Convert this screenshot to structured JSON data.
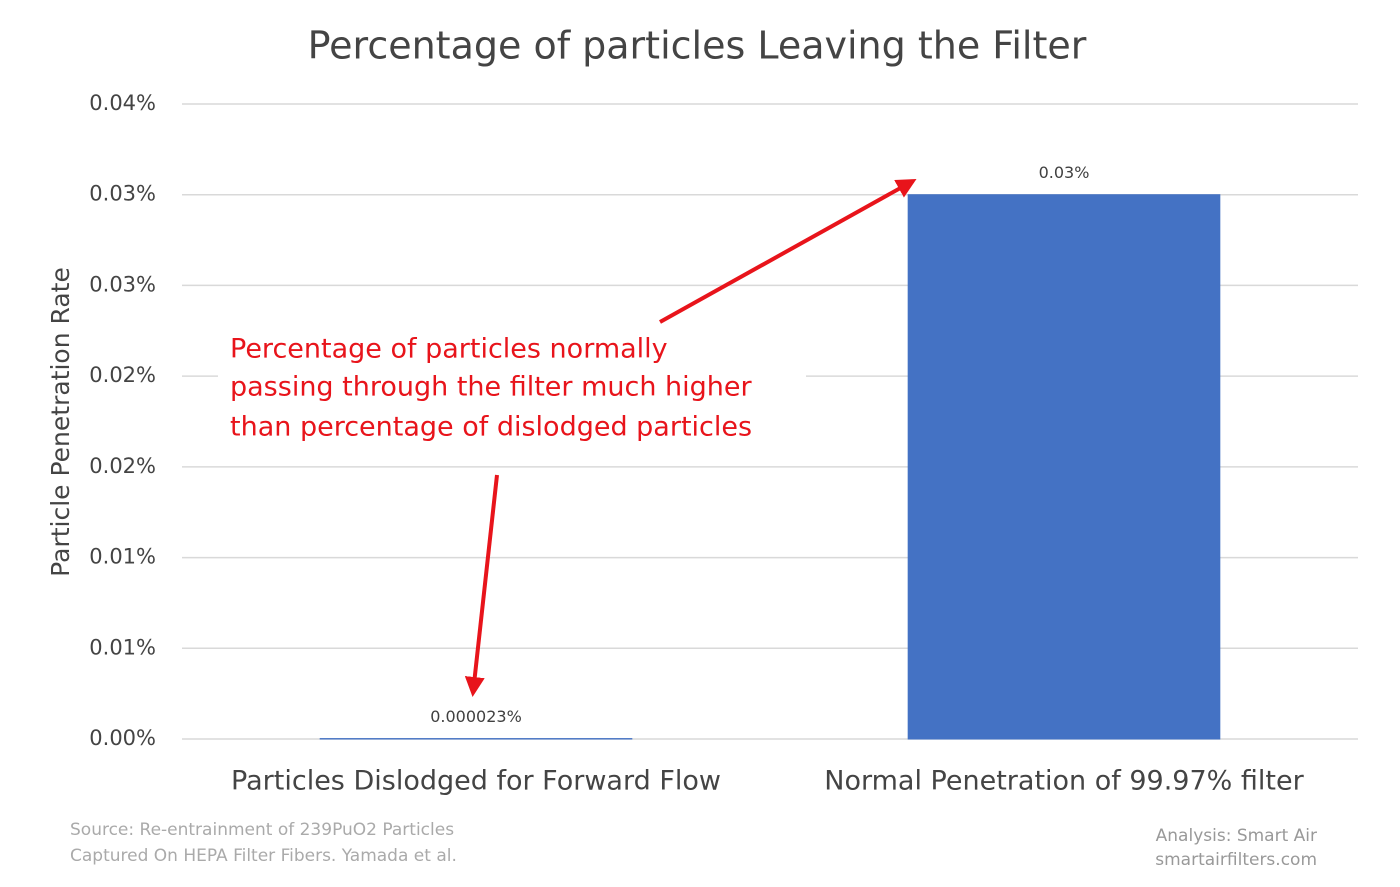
{
  "chart_data": {
    "type": "bar",
    "title": "Percentage of particles Leaving the Filter",
    "y_label": "Particle Penetration Rate",
    "categories": [
      "Particles Dislodged for Forward Flow",
      "Normal Penetration of 99.97% filter"
    ],
    "values": [
      2.3e-05,
      0.03
    ],
    "value_labels": [
      "0.000023%",
      "0.03%"
    ],
    "color": "#4472c4",
    "ylim": [
      0,
      0.035
    ],
    "yticks": [
      {
        "value": 0,
        "label": "0.00%"
      },
      {
        "value": 0.005,
        "label": "0.01%"
      },
      {
        "value": 0.01,
        "label": "0.01%"
      },
      {
        "value": 0.015,
        "label": "0.02%"
      },
      {
        "value": 0.02,
        "label": "0.02%"
      },
      {
        "value": 0.025,
        "label": "0.03%"
      },
      {
        "value": 0.03,
        "label": "0.03%"
      },
      {
        "value": 0.035,
        "label": "0.04%"
      }
    ],
    "grid": true,
    "annotation": [
      "Percentage of particles normally",
      "passing through the filter much higher",
      "than percentage of dislodged particles"
    ],
    "source": [
      "Source: Re-entrainment of 239PuO2 Particles",
      "Captured On HEPA Filter Fibers. Yamada et al."
    ],
    "credit": [
      "Analysis: Smart Air",
      "smartairfilters.com"
    ]
  }
}
